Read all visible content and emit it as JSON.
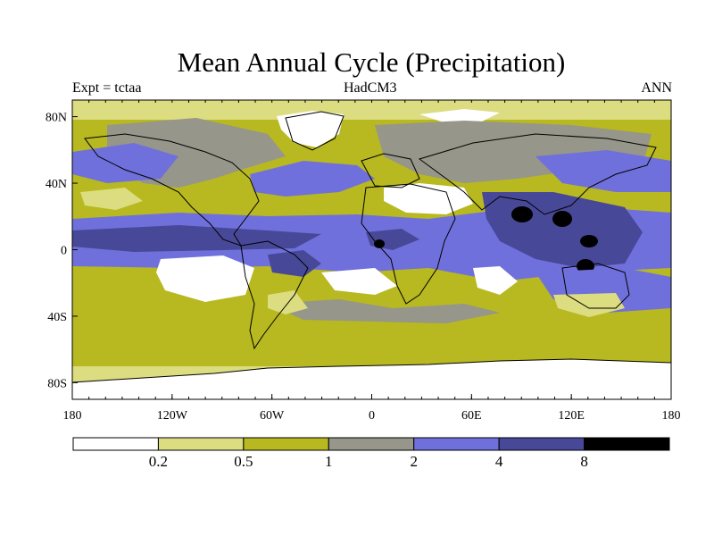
{
  "title": "Mean Annual Cycle (Precipitation)",
  "subtitle_left": "Expt = tctaa",
  "subtitle_center": "HadCM3",
  "subtitle_right": "ANN",
  "axes": {
    "lon_ticks": [
      "180",
      "120W",
      "60W",
      "0",
      "60E",
      "120E",
      "180"
    ],
    "lat_ticks": [
      "80N",
      "40N",
      "0",
      "40S",
      "80S"
    ]
  },
  "colorbar": {
    "colors": [
      "#ffffff",
      "#dcdc80",
      "#b8b820",
      "#96968a",
      "#7070dc",
      "#484898",
      "#000000"
    ],
    "labels": [
      "0.2",
      "0.5",
      "1",
      "2",
      "4",
      "8"
    ]
  },
  "chart_data": {
    "type": "heatmap",
    "title": "Mean Annual Cycle (Precipitation)",
    "x_range": [
      -180,
      180
    ],
    "y_range": [
      -90,
      90
    ],
    "bins": [
      0.2,
      0.5,
      1,
      2,
      4,
      8
    ],
    "grid": false,
    "legend": "bottom"
  }
}
